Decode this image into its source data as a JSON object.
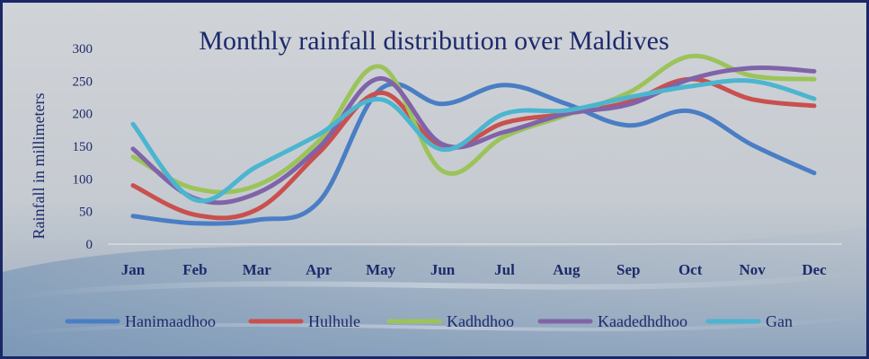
{
  "chart_data": {
    "type": "line",
    "title": "Monthly rainfall distribution over Maldives",
    "xlabel": "",
    "ylabel": "Rainfall in millimeters",
    "categories": [
      "Jan",
      "Feb",
      "Mar",
      "Apr",
      "May",
      "Jun",
      "Jul",
      "Aug",
      "Sep",
      "Oct",
      "Nov",
      "Dec"
    ],
    "ylim": [
      0,
      300
    ],
    "yticks": [
      "0",
      "50",
      "100",
      "150",
      "200",
      "250",
      "300"
    ],
    "grid": false,
    "legend_position": "bottom",
    "series": [
      {
        "name": "Hanimaadhoo",
        "color": "#4a7ec4",
        "values": [
          43,
          32,
          37,
          65,
          238,
          215,
          244,
          215,
          182,
          204,
          152,
          109
        ]
      },
      {
        "name": "Hulhule",
        "color": "#c9504e",
        "values": [
          90,
          45,
          53,
          140,
          232,
          148,
          186,
          200,
          218,
          253,
          222,
          212
        ]
      },
      {
        "name": "Kadhdhoo",
        "color": "#9cc35a",
        "values": [
          134,
          85,
          90,
          158,
          272,
          112,
          165,
          198,
          232,
          288,
          258,
          253
        ]
      },
      {
        "name": "Kaadedhdhoo",
        "color": "#8063a8",
        "values": [
          146,
          70,
          78,
          148,
          254,
          153,
          172,
          200,
          214,
          253,
          270,
          265
        ]
      },
      {
        "name": "Gan",
        "color": "#4cb5cf",
        "values": [
          184,
          68,
          119,
          168,
          222,
          145,
          200,
          205,
          225,
          242,
          250,
          223
        ]
      }
    ]
  }
}
